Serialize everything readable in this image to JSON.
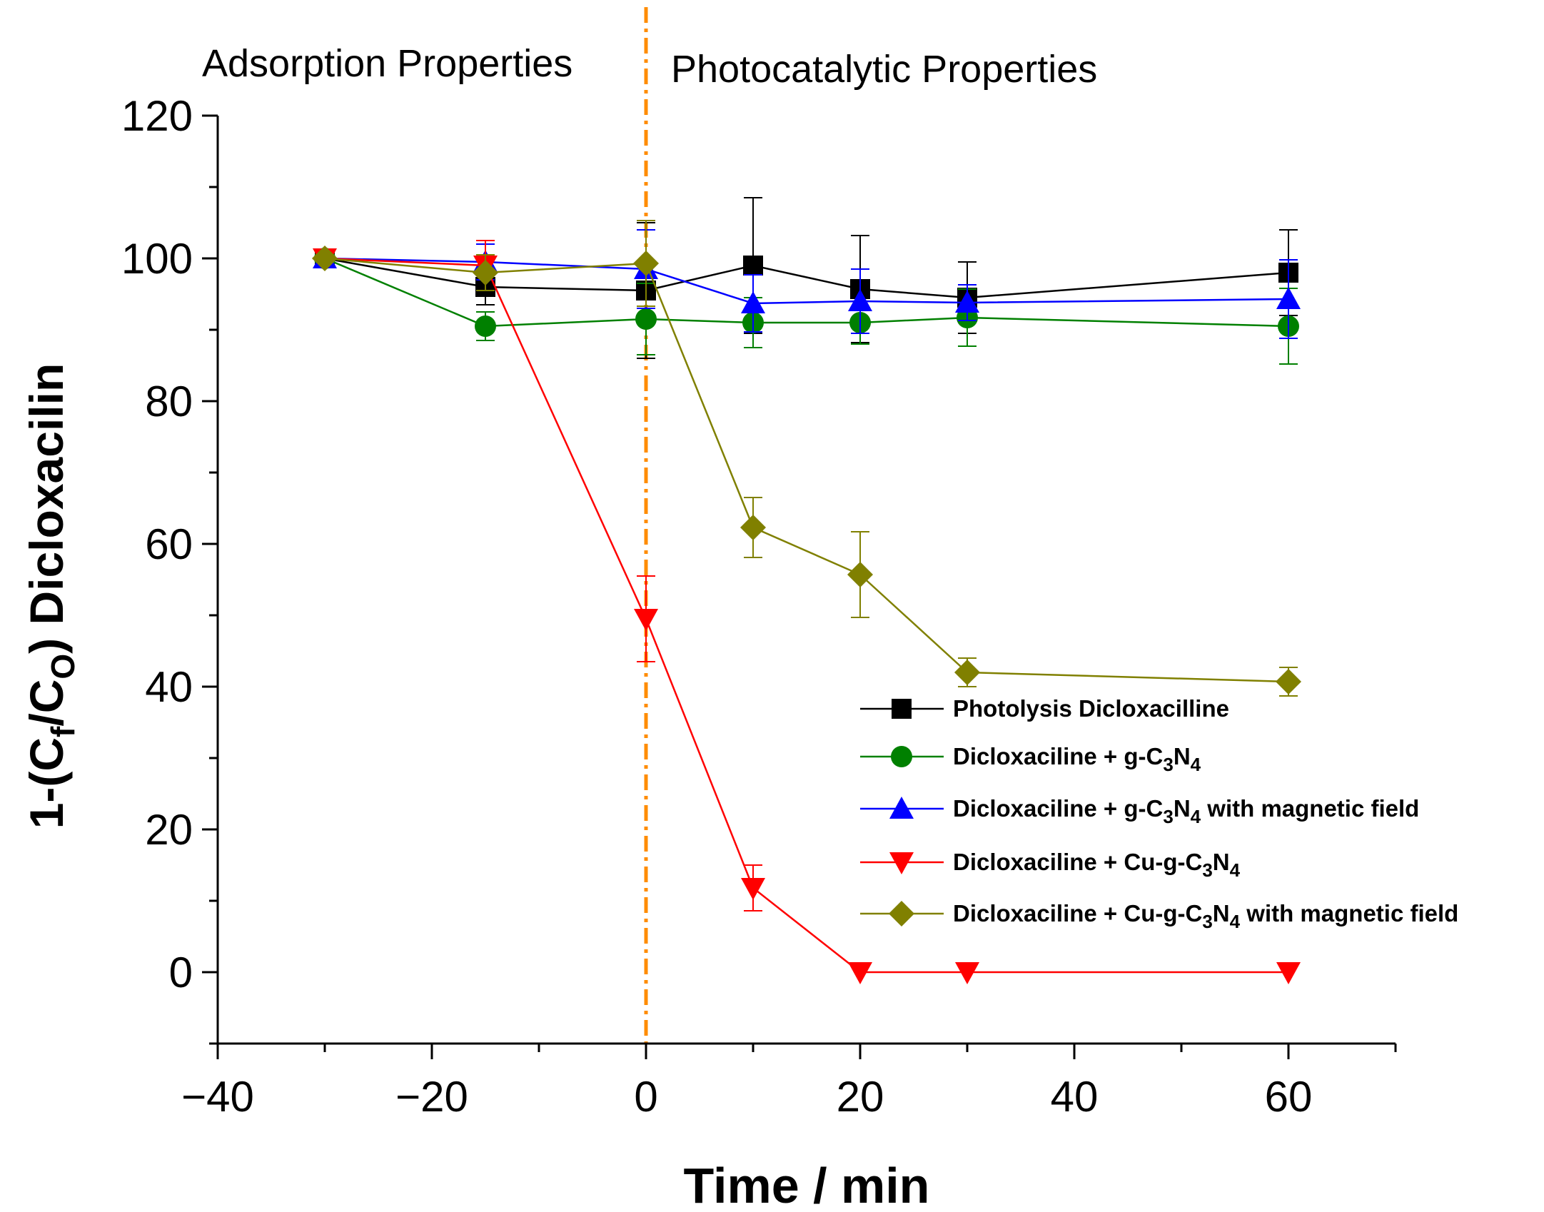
{
  "chart_data": {
    "type": "line",
    "title": "",
    "xlabel": "Time / min",
    "ylabel": {
      "prefix": "1-(C",
      "sub1": "f",
      "mid": "/C",
      "sub2": "O",
      "suffix": ") Dicloxacilin"
    },
    "xlim": [
      -40,
      70
    ],
    "ylim": [
      -10,
      120
    ],
    "x_ticks": [
      -40,
      -20,
      0,
      20,
      40,
      60
    ],
    "y_ticks": [
      0,
      20,
      40,
      60,
      80,
      100,
      120
    ],
    "x_tick_labels": [
      "−40",
      "−20",
      "0",
      "20",
      "40",
      "60"
    ],
    "y_tick_labels": [
      "0",
      "20",
      "40",
      "60",
      "80",
      "100",
      "120"
    ],
    "grid": false,
    "legend_position": "right",
    "divider": {
      "x": 0,
      "color": "#FF8C00",
      "style": "dash-dot"
    },
    "region_labels": [
      "Adsorption Properties",
      "Photocatalytic Properties"
    ],
    "x": [
      -30,
      -15,
      0,
      10,
      20,
      30,
      60
    ],
    "series": [
      {
        "legend": [
          {
            "t": "Photolysis Dicloxacilline"
          }
        ],
        "color": "#000000",
        "marker": "square",
        "values": [
          100,
          96,
          95.5,
          99,
          95.7,
          94.5,
          98
        ],
        "errors": [
          0,
          2.5,
          9.5,
          9.5,
          7.5,
          5,
          6
        ]
      },
      {
        "legend": [
          {
            "t": "Dicloxaciline + g-C"
          },
          {
            "t": "3",
            "sub": true
          },
          {
            "t": "N"
          },
          {
            "t": "4",
            "sub": true
          }
        ],
        "color": "#008000",
        "marker": "circle",
        "values": [
          100,
          90.5,
          91.5,
          91,
          91,
          91.7,
          90.5
        ],
        "errors": [
          0,
          2,
          5,
          3.5,
          3,
          4,
          5.3
        ]
      },
      {
        "legend": [
          {
            "t": "Dicloxaciline + g-C"
          },
          {
            "t": "3",
            "sub": true
          },
          {
            "t": "N"
          },
          {
            "t": "4",
            "sub": true
          },
          {
            "t": " with magnetic field"
          }
        ],
        "color": "#0000FF",
        "marker": "triangle-up",
        "values": [
          100,
          99.5,
          98.5,
          93.7,
          94,
          93.8,
          94.3
        ],
        "errors": [
          0,
          2.5,
          5.5,
          4,
          4.5,
          2.5,
          5.5
        ]
      },
      {
        "legend": [
          {
            "t": " Dicloxaciline + Cu-g-C"
          },
          {
            "t": "3",
            "sub": true
          },
          {
            "t": "N"
          },
          {
            "t": "4",
            "sub": true
          }
        ],
        "color": "#FF0000",
        "marker": "triangle-down",
        "values": [
          100,
          99,
          49.5,
          11.8,
          0,
          0,
          0
        ],
        "errors": [
          0,
          3.5,
          6,
          3.2,
          0,
          0,
          0
        ]
      },
      {
        "legend": [
          {
            "t": "Dicloxaciline + Cu-g-C"
          },
          {
            "t": "3",
            "sub": true
          },
          {
            "t": "N"
          },
          {
            "t": "4",
            "sub": true
          },
          {
            "t": " with magnetic field"
          }
        ],
        "color": "#808000",
        "marker": "diamond",
        "values": [
          100,
          98,
          99.3,
          62.3,
          55.7,
          42,
          40.7
        ],
        "errors": [
          0,
          2.5,
          6,
          4.2,
          6,
          2,
          2
        ]
      }
    ]
  }
}
